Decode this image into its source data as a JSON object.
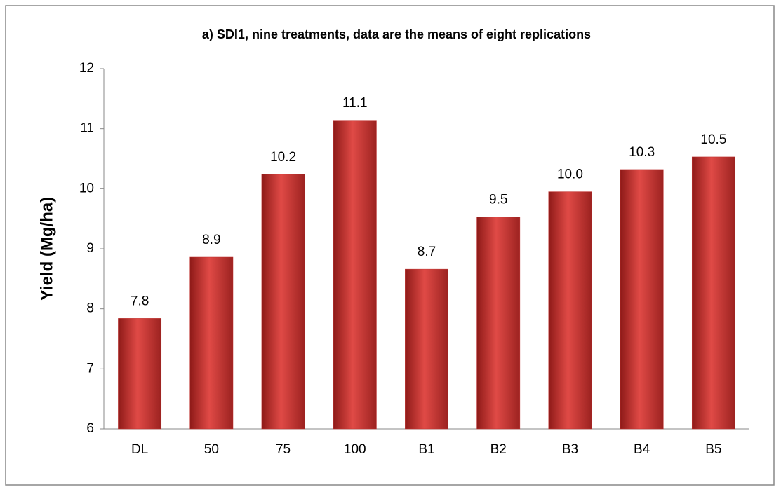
{
  "chart_data": {
    "type": "bar",
    "title": "a)  SDI1, nine treatments, data are the means of eight replications",
    "y_label": "Yield (Mg/ha)",
    "categories": [
      "DL",
      "50",
      "75",
      "100",
      "B1",
      "B2",
      "B3",
      "B4",
      "B5"
    ],
    "values": [
      7.84,
      8.86,
      10.24,
      11.14,
      8.66,
      9.53,
      9.95,
      10.32,
      10.53
    ],
    "value_labels": [
      "7.8",
      "8.9",
      "10.2",
      "11.1",
      "8.7",
      "9.5",
      "10.0",
      "10.3",
      "10.5"
    ],
    "color": "#c0302e",
    "ylim": [
      6,
      12
    ],
    "yticks": [
      6,
      7,
      8,
      9,
      10,
      11,
      12
    ],
    "grid": false
  }
}
